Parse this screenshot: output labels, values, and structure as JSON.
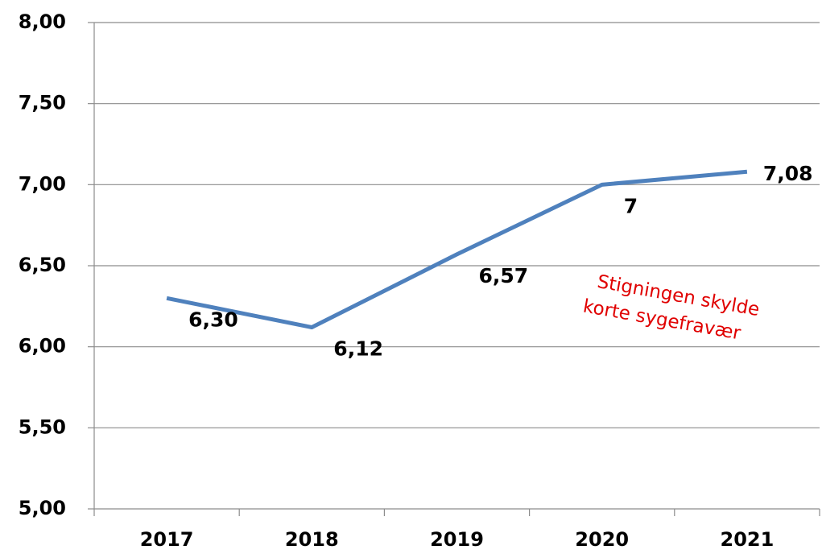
{
  "chart_data": {
    "type": "line",
    "categories": [
      "2017",
      "2018",
      "2019",
      "2020",
      "2021"
    ],
    "series": [
      {
        "color": "#4f81bd",
        "values": [
          6.3,
          6.12,
          6.57,
          7,
          7.08
        ],
        "value_labels": [
          "6,30",
          "6,12",
          "6,57",
          "7",
          "7,08"
        ]
      }
    ],
    "ylim": [
      5,
      8
    ],
    "yticks": [
      {
        "value": 5,
        "label": "5,00"
      },
      {
        "value": 5.5,
        "label": "5,50"
      },
      {
        "value": 6,
        "label": "6,00"
      },
      {
        "value": 6.5,
        "label": "6,50"
      },
      {
        "value": 7,
        "label": "7,00"
      },
      {
        "value": 7.5,
        "label": "7,50"
      },
      {
        "value": 8,
        "label": "8,00"
      }
    ],
    "grid": true,
    "annotation": [
      "Stigningen skylde",
      "korte sygefravær"
    ]
  }
}
